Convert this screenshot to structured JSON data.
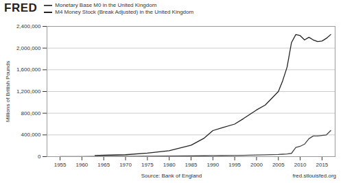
{
  "chart_data": {
    "type": "line",
    "y_label": "Millions of British Pounds",
    "annotations": [
      "FRED",
      "Source: Bank of England",
      "fred.stlouisfed.org"
    ],
    "x": [
      1955,
      1960,
      1963,
      1965,
      1970,
      1975,
      1980,
      1985,
      1988,
      1990,
      1992,
      1995,
      1997,
      2000,
      2002,
      2005,
      2006,
      2007,
      2008,
      2009,
      2010,
      2011,
      2012,
      2013,
      2014,
      2015,
      2016,
      2017
    ],
    "series": [
      {
        "name": "Monetary Base M0 in the United Kingdom",
        "color": "#444444",
        "values": [
          2000,
          2500,
          3000,
          3500,
          5000,
          8000,
          11000,
          14000,
          16000,
          18000,
          19000,
          21000,
          24000,
          30000,
          34000,
          40000,
          44000,
          48000,
          60000,
          170000,
          190000,
          230000,
          330000,
          380000,
          380000,
          390000,
          400000,
          480000
        ]
      },
      {
        "name": "M4 Money Stock (Break Adjusted) in the United Kingdom",
        "color": "#222222",
        "values": [
          null,
          null,
          20000,
          25000,
          35000,
          65000,
          110000,
          210000,
          340000,
          480000,
          530000,
          600000,
          700000,
          860000,
          950000,
          1200000,
          1400000,
          1650000,
          2100000,
          2250000,
          2230000,
          2150000,
          2200000,
          2150000,
          2120000,
          2130000,
          2180000,
          2250000
        ]
      }
    ],
    "xlim": [
      1952,
      2018
    ],
    "xticks": [
      1955,
      1960,
      1965,
      1970,
      1975,
      1980,
      1985,
      1990,
      1995,
      2000,
      2005,
      2010,
      2015
    ],
    "ylim": [
      0,
      2400000
    ],
    "yticks": [
      0,
      {
        "value": 400000,
        "label": "400,000"
      },
      {
        "value": 800000,
        "label": "800,000"
      },
      {
        "value": 1200000,
        "label": "1,200,000"
      },
      {
        "value": 1600000,
        "label": "1,600,000"
      },
      {
        "value": 2000000,
        "label": "2,000,000"
      },
      {
        "value": 2400000,
        "label": "2,400,000"
      }
    ],
    "grid": true
  }
}
